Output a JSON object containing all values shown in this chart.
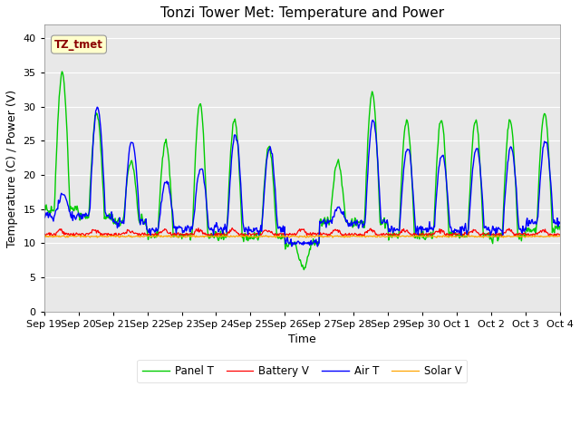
{
  "title": "Tonzi Tower Met: Temperature and Power",
  "xlabel": "Time",
  "ylabel": "Temperature (C) / Power (V)",
  "ylim": [
    0,
    42
  ],
  "yticks": [
    0,
    5,
    10,
    15,
    20,
    25,
    30,
    35,
    40
  ],
  "annotation_text": "TZ_tmet",
  "annotation_color": "#8B0000",
  "annotation_bg": "#FFFFCC",
  "bg_color": "#E0E0E0",
  "plot_bg": "#E8E8E8",
  "panel_color": "#00CC00",
  "battery_color": "#FF0000",
  "air_color": "#0000FF",
  "solar_color": "#FFA500",
  "legend_labels": [
    "Panel T",
    "Battery V",
    "Air T",
    "Solar V"
  ],
  "x_tick_labels": [
    "Sep 19",
    "Sep 20",
    "Sep 21",
    "Sep 22",
    "Sep 23",
    "Sep 24",
    "Sep 25",
    "Sep 26",
    "Sep 27",
    "Sep 28",
    "Sep 29",
    "Sep 30",
    "Oct 1",
    "Oct 2",
    "Oct 3",
    "Oct 4"
  ],
  "title_fontsize": 11,
  "axis_label_fontsize": 9,
  "tick_fontsize": 8
}
